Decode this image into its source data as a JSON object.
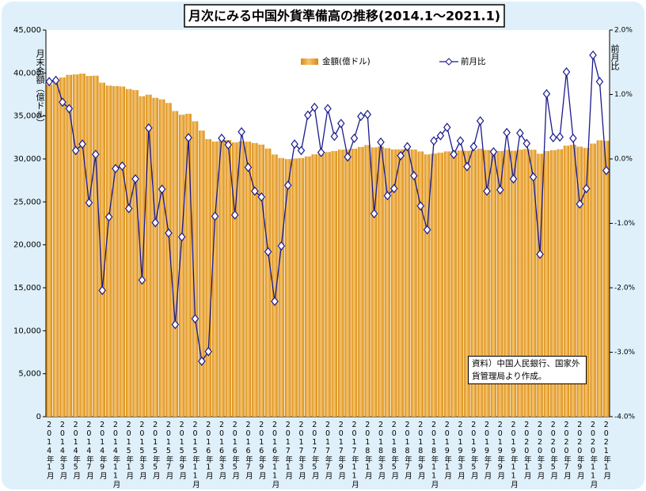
{
  "chart_data": {
    "type": "bar",
    "title": "月次にみる中国外貨準備高の推移(2014.1～2021.1)",
    "y_label": "月末金額（億ドル）",
    "y2_label": "前月比",
    "annotation": "資料）中国人民銀行、国家外貨管理局より作成。",
    "categories": [
      "2014年1月",
      null,
      "2014年3月",
      null,
      "2014年5月",
      null,
      "2014年7月",
      null,
      "2014年9月",
      null,
      "2014年11月",
      null,
      "2015年1月",
      null,
      "2015年3月",
      null,
      "2015年5月",
      null,
      "2015年7月",
      null,
      "2015年9月",
      null,
      "2015年11月",
      null,
      "2016年1月",
      null,
      "2016年3月",
      null,
      "2016年5月",
      null,
      "2016年7月",
      null,
      "2016年9月",
      null,
      "2016年11月",
      null,
      "2017年1月",
      null,
      "2017年3月",
      null,
      "2017年5月",
      null,
      "2017年7月",
      null,
      "2017年9月",
      null,
      "2017年11月",
      null,
      "2018年1月",
      null,
      "2018年3月",
      null,
      "2018年5月",
      null,
      "2018年7月",
      null,
      "2018年9月",
      null,
      "2018年11月",
      null,
      "2019年1月",
      null,
      "2019年3月",
      null,
      "2019年5月",
      null,
      "2019年7月",
      null,
      "2019年9月",
      null,
      "2019年11月",
      null,
      "2020年1月",
      null,
      "2020年3月",
      null,
      "2020年5月",
      null,
      "2020年7月",
      null,
      "2020年9月",
      null,
      "2020年11月",
      null,
      "2021年1月"
    ],
    "series": [
      {
        "name": "金額(億ドル)",
        "type": "bar",
        "color": "#d98b12",
        "values": [
          38666,
          39137,
          39481,
          39788,
          39839,
          39932,
          39662,
          39688,
          38877,
          38529,
          38473,
          38430,
          38134,
          38015,
          37301,
          37481,
          37111,
          36938,
          36513,
          35573,
          35141,
          35256,
          34383,
          33304,
          32309,
          32023,
          32126,
          32197,
          31917,
          32052,
          32011,
          31851,
          31664,
          31207,
          30516,
          30105,
          29982,
          30051,
          30091,
          30295,
          30536,
          30568,
          30807,
          30915,
          31085,
          31093,
          31193,
          31399,
          31615,
          31345,
          31428,
          31249,
          31106,
          31121,
          31179,
          31097,
          30870,
          30531,
          30617,
          30727,
          30879,
          30902,
          30988,
          30950,
          31010,
          31192,
          31037,
          31072,
          30924,
          31052,
          30956,
          31079,
          31155,
          31067,
          30606,
          30915,
          31017,
          31123,
          31544,
          31646,
          31426,
          31280,
          31785,
          32165,
          32107
        ]
      },
      {
        "name": "前月比",
        "type": "line",
        "axis": "y2",
        "color": "#1a1a8c",
        "values": [
          1.2,
          1.22,
          0.88,
          0.78,
          0.13,
          0.23,
          -0.68,
          0.07,
          -2.04,
          -0.9,
          -0.15,
          -0.11,
          -0.77,
          -0.31,
          -1.88,
          0.48,
          -0.99,
          -0.47,
          -1.15,
          -2.57,
          -1.21,
          0.33,
          -2.48,
          -3.14,
          -2.99,
          -0.89,
          0.32,
          0.22,
          -0.87,
          0.42,
          -0.13,
          -0.5,
          -0.59,
          -1.44,
          -2.21,
          -1.35,
          -0.41,
          0.23,
          0.13,
          0.68,
          0.8,
          0.1,
          0.78,
          0.35,
          0.55,
          0.03,
          0.32,
          0.66,
          0.69,
          -0.85,
          0.26,
          -0.57,
          -0.46,
          0.05,
          0.19,
          -0.26,
          -0.73,
          -1.1,
          0.28,
          0.36,
          0.49,
          0.07,
          0.28,
          -0.12,
          0.19,
          0.59,
          -0.5,
          0.11,
          -0.48,
          0.41,
          -0.31,
          0.4,
          0.24,
          -0.28,
          -1.48,
          1.01,
          0.33,
          0.34,
          1.35,
          0.32,
          -0.7,
          -0.46,
          1.61,
          1.2,
          -0.18
        ]
      }
    ],
    "ylim": [
      0,
      45000
    ],
    "yticks": [
      0,
      {
        "value": 5000,
        "label": "5,000"
      },
      {
        "value": 10000,
        "label": "10,000"
      },
      {
        "value": 15000,
        "label": "15,000"
      },
      {
        "value": 20000,
        "label": "20,000"
      },
      {
        "value": 25000,
        "label": "25,000"
      },
      {
        "value": 30000,
        "label": "30,000"
      },
      {
        "value": 35000,
        "label": "35,000"
      },
      {
        "value": 40000,
        "label": "40,000"
      },
      {
        "value": 45000,
        "label": "45,000"
      }
    ],
    "y2lim": [
      -4,
      2
    ],
    "y2ticks": [
      {
        "value": -4,
        "label": "-4.0%"
      },
      {
        "value": -3,
        "label": "-3.0%"
      },
      {
        "value": -2,
        "label": "-2.0%"
      },
      {
        "value": -1,
        "label": "-1.0%"
      },
      {
        "value": 0,
        "label": "0.0%"
      },
      {
        "value": 1,
        "label": "1.0%"
      },
      {
        "value": 2,
        "label": "2.0%"
      }
    ],
    "grid": false
  }
}
